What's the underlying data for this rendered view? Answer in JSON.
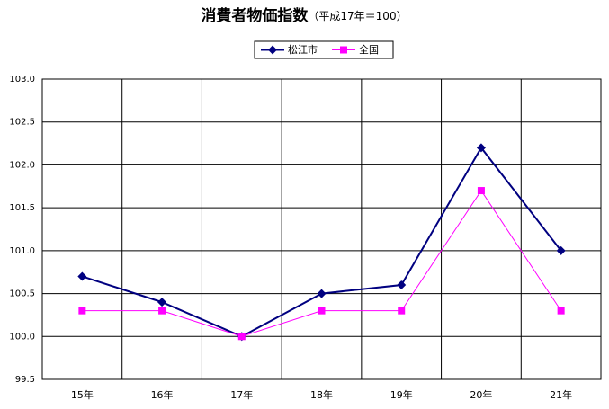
{
  "chart_data": {
    "type": "line",
    "title": "消費者物価指数",
    "subtitle": "（平成17年＝100）",
    "categories": [
      "15年",
      "16年",
      "17年",
      "18年",
      "19年",
      "20年",
      "21年"
    ],
    "series": [
      {
        "name": "松江市",
        "color": "#000080",
        "marker": "diamond",
        "values": [
          100.7,
          100.4,
          100.0,
          100.5,
          100.6,
          102.2,
          101.0
        ]
      },
      {
        "name": "全国",
        "color": "#ff00ff",
        "marker": "square",
        "values": [
          100.3,
          100.3,
          100.0,
          100.3,
          100.3,
          101.7,
          100.3
        ]
      }
    ],
    "ylim": [
      99.5,
      103.0
    ],
    "yticks": [
      99.5,
      {
        "value": 100.0,
        "label": "100.0"
      },
      100.5,
      {
        "value": 101.0,
        "label": "101.0"
      },
      101.5,
      {
        "value": 102.0,
        "label": "102.0"
      },
      102.5,
      {
        "value": 103.0,
        "label": "103.0"
      }
    ],
    "grid": true,
    "legend": "top"
  }
}
